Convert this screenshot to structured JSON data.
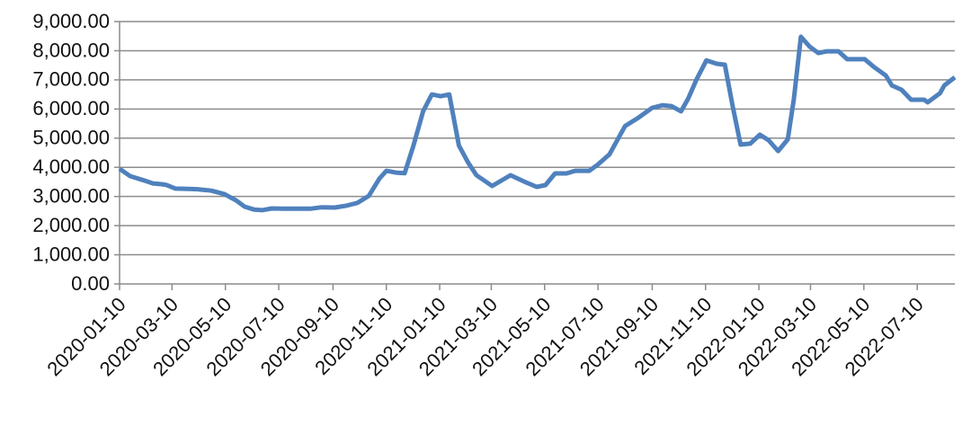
{
  "chart_data": {
    "type": "line",
    "x": [
      "2020-01-10",
      "2020-01-22",
      "2020-02-07",
      "2020-02-17",
      "2020-02-27",
      "2020-03-03",
      "2020-03-14",
      "2020-03-29",
      "2020-04-08",
      "2020-04-24",
      "2020-05-09",
      "2020-05-22",
      "2020-06-01",
      "2020-06-12",
      "2020-06-21",
      "2020-07-02",
      "2020-07-15",
      "2020-07-31",
      "2020-08-15",
      "2020-08-28",
      "2020-09-12",
      "2020-09-25",
      "2020-10-08",
      "2020-10-21",
      "2020-11-02",
      "2020-11-10",
      "2020-11-21",
      "2020-12-01",
      "2020-12-11",
      "2020-12-22",
      "2021-01-01",
      "2021-01-11",
      "2021-01-21",
      "2021-02-01",
      "2021-02-11",
      "2021-02-21",
      "2021-03-11",
      "2021-04-01",
      "2021-04-19",
      "2021-05-01",
      "2021-05-11",
      "2021-05-22",
      "2021-06-04",
      "2021-06-14",
      "2021-06-30",
      "2021-07-10",
      "2021-07-23",
      "2021-08-10",
      "2021-08-25",
      "2021-09-10",
      "2021-09-22",
      "2021-10-02",
      "2021-10-13",
      "2021-10-21",
      "2021-10-31",
      "2021-11-11",
      "2021-11-23",
      "2021-12-02",
      "2021-12-11",
      "2021-12-20",
      "2021-12-31",
      "2022-01-11",
      "2022-01-21",
      "2022-02-01",
      "2022-02-12",
      "2022-02-19",
      "2022-02-27",
      "2022-03-09",
      "2022-03-19",
      "2022-03-29",
      "2022-04-11",
      "2022-04-21",
      "2022-05-01",
      "2022-05-11",
      "2022-05-22",
      "2022-06-04",
      "2022-06-11",
      "2022-06-22",
      "2022-07-03",
      "2022-07-18",
      "2022-07-22",
      "2022-08-05",
      "2022-08-10",
      "2022-08-22"
    ],
    "series": [
      {
        "color": "#4f81bd",
        "values": [
          3950,
          3700,
          3550,
          3450,
          3420,
          3400,
          3270,
          3260,
          3250,
          3200,
          3080,
          2870,
          2650,
          2550,
          2530,
          2590,
          2580,
          2580,
          2580,
          2630,
          2620,
          2680,
          2780,
          3020,
          3610,
          3880,
          3820,
          3800,
          4750,
          5920,
          6500,
          6440,
          6500,
          4750,
          4190,
          3730,
          3360,
          3730,
          3480,
          3330,
          3390,
          3790,
          3790,
          3880,
          3880,
          4100,
          4440,
          5420,
          5700,
          6040,
          6130,
          6100,
          5920,
          6350,
          7030,
          7670,
          7550,
          7520,
          6100,
          4780,
          4810,
          5120,
          4930,
          4560,
          4960,
          6350,
          8480,
          8140,
          7920,
          7980,
          7980,
          7710,
          7710,
          7710,
          7430,
          7150,
          6810,
          6660,
          6320,
          6320,
          6230,
          6540,
          6810,
          7090
        ]
      }
    ],
    "xlim": [
      "2020-01-10",
      "2022-08-22"
    ],
    "xticks": [
      "2020-01-10",
      "2020-03-10",
      "2020-05-10",
      "2020-07-10",
      "2020-09-10",
      "2020-11-10",
      "2021-01-10",
      "2021-03-10",
      "2021-05-10",
      "2021-07-10",
      "2021-09-10",
      "2021-11-10",
      "2022-01-10",
      "2022-03-10",
      "2022-05-10",
      "2022-07-10"
    ],
    "ylim": [
      0,
      9000
    ],
    "yticks": [
      {
        "value": 0,
        "label": "0.00"
      },
      {
        "value": 1000,
        "label": "1,000.00"
      },
      {
        "value": 2000,
        "label": "2,000.00"
      },
      {
        "value": 3000,
        "label": "3,000.00"
      },
      {
        "value": 4000,
        "label": "4,000.00"
      },
      {
        "value": 5000,
        "label": "5,000.00"
      },
      {
        "value": 6000,
        "label": "6,000.00"
      },
      {
        "value": 7000,
        "label": "7,000.00"
      },
      {
        "value": 8000,
        "label": "8,000.00"
      },
      {
        "value": 9000,
        "label": "9,000.00"
      }
    ],
    "grid": true
  }
}
